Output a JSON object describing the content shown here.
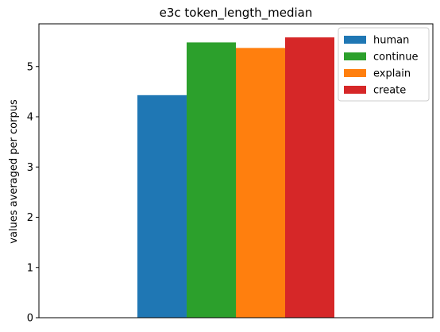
{
  "chart_data": {
    "type": "bar",
    "title": "e3c token_length_median",
    "xlabel": "",
    "ylabel": "values averaged per corpus",
    "ylim": [
      0,
      5.85
    ],
    "yticks": [
      0,
      1,
      2,
      3,
      4,
      5
    ],
    "grid": false,
    "legend_position": "top-right",
    "categories": [
      ""
    ],
    "series": [
      {
        "name": "human",
        "values": [
          4.43
        ],
        "color": "#1f77b4"
      },
      {
        "name": "continue",
        "values": [
          5.48
        ],
        "color": "#2ca02c"
      },
      {
        "name": "explain",
        "values": [
          5.37
        ],
        "color": "#ff7f0e"
      },
      {
        "name": "create",
        "values": [
          5.58
        ],
        "color": "#d62728"
      }
    ]
  }
}
